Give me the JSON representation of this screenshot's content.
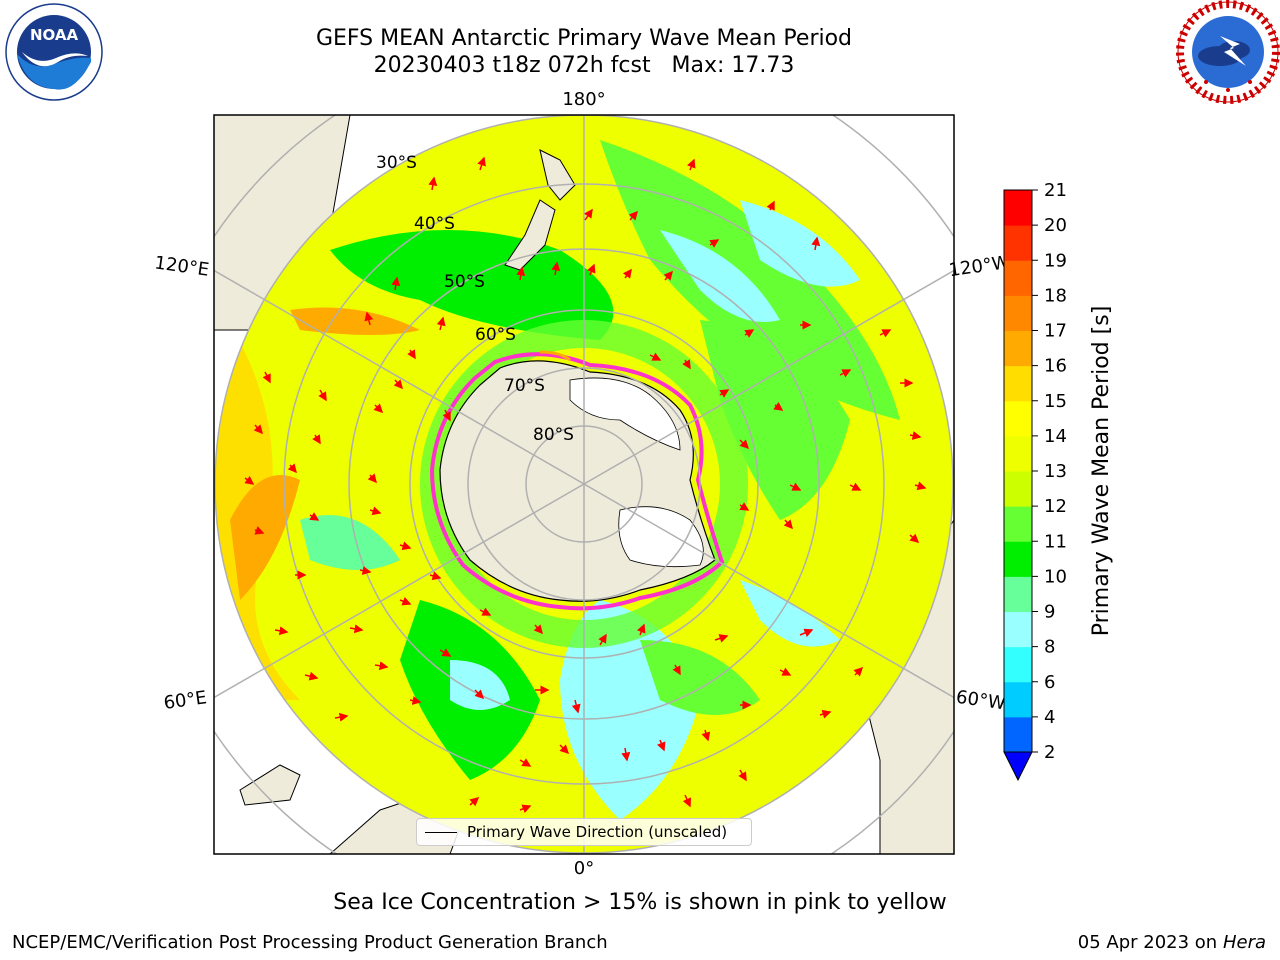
{
  "header": {
    "title_line1": "GEFS MEAN Antarctic Primary Wave Mean Period",
    "title_line2": "20230403 t18z 072h fcst   Max: 17.73"
  },
  "logos": {
    "left": {
      "name": "noaa-logo",
      "text": "NOAA",
      "ring_text": "NATIONAL OCEANIC AND ATMOSPHERIC ADMINISTRATION · U.S. DEPARTMENT OF COMMERCE"
    },
    "right": {
      "name": "nws-logo",
      "ring_text": "NATIONAL WEATHER SERVICE"
    }
  },
  "map": {
    "projection": "south-polar-stereographic",
    "longitude_labels": {
      "top": "180°",
      "upper_left": "120°E",
      "upper_right": "120°W",
      "lower_left": "60°E",
      "lower_right": "60°W",
      "bottom": "0°"
    },
    "latitude_labels": [
      "30°S",
      "40°S",
      "50°S",
      "60°S",
      "70°S",
      "80°S"
    ],
    "colors": {
      "land": "#efebdb",
      "ice_shelf": "#ffffff",
      "gridline": "#b0b0b0",
      "arrow": "#ff0000",
      "sea_ice_edge": "#ff33cc"
    },
    "legend_label": "Primary Wave Direction (unscaled)"
  },
  "colorbar": {
    "label": "Primary Wave Mean Period [s]",
    "ticks": [
      "2",
      "4",
      "6",
      "8",
      "9",
      "10",
      "11",
      "12",
      "13",
      "14",
      "15",
      "16",
      "17",
      "18",
      "19",
      "20",
      "21"
    ],
    "colors": [
      "#0066ff",
      "#00ccff",
      "#33ffff",
      "#99ffff",
      "#66ff99",
      "#00ee00",
      "#66ff33",
      "#ccff00",
      "#eeff00",
      "#ffff00",
      "#ffdd00",
      "#ffaa00",
      "#ff8800",
      "#ff6600",
      "#ff3300",
      "#ff0000"
    ],
    "under_color": "#0000ff"
  },
  "subtitle": "Sea Ice Concentration > 15% is shown in pink to yellow",
  "footer": {
    "left": "NCEP/EMC/Verification Post Processing Product Generation Branch",
    "right_prefix": "05 Apr 2023 on ",
    "right_italic": "Hera"
  }
}
